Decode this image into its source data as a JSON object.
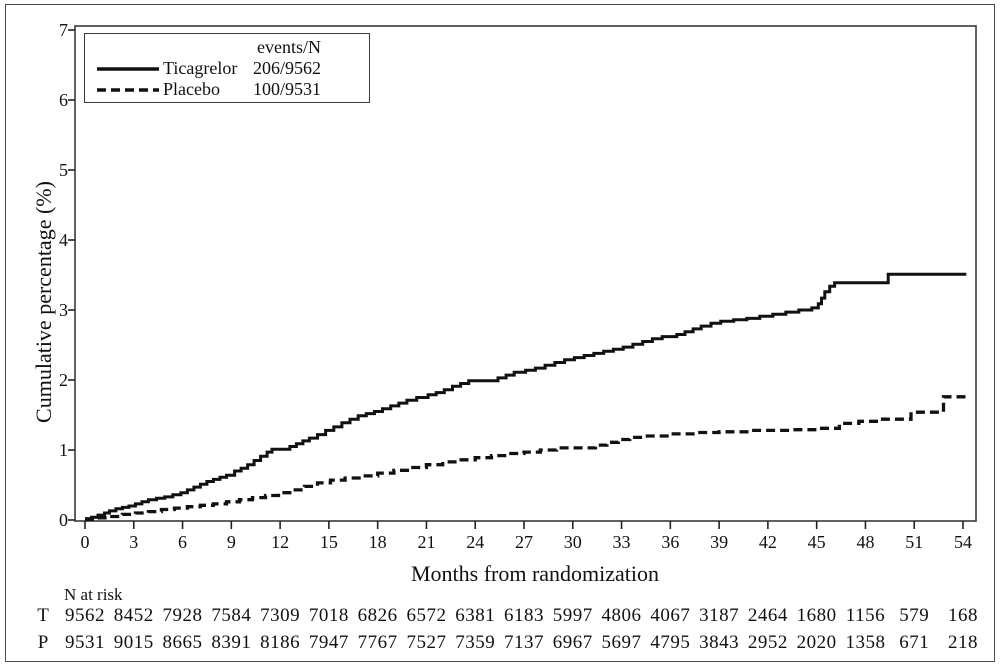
{
  "figure": {
    "background": "#ffffff",
    "line_color": "#111111",
    "frame_color": "#3a3a3a",
    "outer_border_color": "#4a4a4a"
  },
  "chart_data": {
    "type": "line",
    "subtype": "kaplan-meier-step",
    "title": "",
    "xlabel": "Months from randomization",
    "ylabel": "Cumulative percentage (%)",
    "xlim": [
      0,
      54
    ],
    "ylim": [
      0,
      7
    ],
    "x_ticks": [
      0,
      3,
      6,
      9,
      12,
      15,
      18,
      21,
      24,
      27,
      30,
      33,
      36,
      39,
      42,
      45,
      48,
      51,
      54
    ],
    "y_ticks": [
      0,
      1,
      2,
      3,
      4,
      5,
      6,
      7
    ],
    "grid": false,
    "legend": {
      "position": "top-left",
      "header": "events/N",
      "entries": [
        {
          "label": "Ticagrelor",
          "events_n": "206/9562",
          "style": "solid"
        },
        {
          "label": "Placebo",
          "events_n": "100/9531",
          "style": "dashed"
        }
      ]
    },
    "series": [
      {
        "name": "Ticagrelor",
        "style": "solid",
        "points": [
          [
            0,
            0.02
          ],
          [
            0.4,
            0.04
          ],
          [
            0.8,
            0.07
          ],
          [
            1.2,
            0.1
          ],
          [
            1.5,
            0.13
          ],
          [
            1.9,
            0.16
          ],
          [
            2.3,
            0.18
          ],
          [
            2.7,
            0.2
          ],
          [
            3.1,
            0.23
          ],
          [
            3.5,
            0.26
          ],
          [
            3.9,
            0.29
          ],
          [
            4.4,
            0.31
          ],
          [
            4.9,
            0.33
          ],
          [
            5.4,
            0.36
          ],
          [
            5.9,
            0.39
          ],
          [
            6.3,
            0.43
          ],
          [
            6.7,
            0.47
          ],
          [
            7.1,
            0.51
          ],
          [
            7.5,
            0.55
          ],
          [
            7.9,
            0.58
          ],
          [
            8.3,
            0.61
          ],
          [
            8.7,
            0.64
          ],
          [
            9.2,
            0.7
          ],
          [
            9.6,
            0.74
          ],
          [
            10.0,
            0.79
          ],
          [
            10.4,
            0.85
          ],
          [
            10.8,
            0.91
          ],
          [
            11.2,
            0.97
          ],
          [
            11.5,
            1.01
          ],
          [
            12.6,
            1.05
          ],
          [
            13.0,
            1.09
          ],
          [
            13.4,
            1.13
          ],
          [
            13.8,
            1.17
          ],
          [
            14.3,
            1.22
          ],
          [
            14.8,
            1.28
          ],
          [
            15.3,
            1.33
          ],
          [
            15.8,
            1.39
          ],
          [
            16.3,
            1.44
          ],
          [
            16.8,
            1.49
          ],
          [
            17.3,
            1.52
          ],
          [
            17.8,
            1.55
          ],
          [
            18.3,
            1.59
          ],
          [
            18.8,
            1.63
          ],
          [
            19.3,
            1.67
          ],
          [
            19.8,
            1.71
          ],
          [
            20.4,
            1.75
          ],
          [
            21.1,
            1.79
          ],
          [
            21.6,
            1.82
          ],
          [
            22.1,
            1.86
          ],
          [
            22.6,
            1.91
          ],
          [
            23.1,
            1.95
          ],
          [
            23.6,
            1.99
          ],
          [
            25.4,
            2.03
          ],
          [
            25.9,
            2.07
          ],
          [
            26.4,
            2.11
          ],
          [
            27.1,
            2.14
          ],
          [
            27.7,
            2.17
          ],
          [
            28.3,
            2.21
          ],
          [
            28.9,
            2.25
          ],
          [
            29.5,
            2.29
          ],
          [
            30.1,
            2.32
          ],
          [
            30.7,
            2.35
          ],
          [
            31.3,
            2.38
          ],
          [
            31.9,
            2.41
          ],
          [
            32.5,
            2.44
          ],
          [
            33.1,
            2.47
          ],
          [
            33.7,
            2.51
          ],
          [
            34.3,
            2.55
          ],
          [
            34.9,
            2.59
          ],
          [
            35.5,
            2.62
          ],
          [
            36.4,
            2.65
          ],
          [
            36.9,
            2.69
          ],
          [
            37.4,
            2.73
          ],
          [
            37.9,
            2.77
          ],
          [
            38.5,
            2.81
          ],
          [
            39.1,
            2.84
          ],
          [
            39.9,
            2.86
          ],
          [
            40.7,
            2.88
          ],
          [
            41.5,
            2.91
          ],
          [
            42.3,
            2.94
          ],
          [
            43.1,
            2.97
          ],
          [
            43.9,
            3.0
          ],
          [
            44.7,
            3.03
          ],
          [
            45.1,
            3.09
          ],
          [
            45.3,
            3.17
          ],
          [
            45.5,
            3.26
          ],
          [
            45.8,
            3.34
          ],
          [
            46.1,
            3.39
          ],
          [
            49.4,
            3.51
          ],
          [
            54.2,
            3.51
          ]
        ]
      },
      {
        "name": "Placebo",
        "style": "dashed",
        "points": [
          [
            0,
            0.01
          ],
          [
            0.7,
            0.03
          ],
          [
            1.5,
            0.05
          ],
          [
            2.3,
            0.08
          ],
          [
            3.1,
            0.1
          ],
          [
            3.9,
            0.12
          ],
          [
            4.7,
            0.15
          ],
          [
            5.5,
            0.17
          ],
          [
            6.3,
            0.19
          ],
          [
            7.1,
            0.21
          ],
          [
            7.9,
            0.23
          ],
          [
            8.7,
            0.26
          ],
          [
            9.5,
            0.29
          ],
          [
            10.3,
            0.32
          ],
          [
            11.1,
            0.35
          ],
          [
            11.9,
            0.39
          ],
          [
            12.7,
            0.43
          ],
          [
            13.5,
            0.48
          ],
          [
            14.3,
            0.53
          ],
          [
            15.1,
            0.57
          ],
          [
            16.0,
            0.6
          ],
          [
            17.0,
            0.63
          ],
          [
            18.0,
            0.67
          ],
          [
            19.0,
            0.71
          ],
          [
            20.0,
            0.75
          ],
          [
            21.0,
            0.79
          ],
          [
            22.0,
            0.83
          ],
          [
            23.0,
            0.86
          ],
          [
            24.0,
            0.89
          ],
          [
            25.0,
            0.92
          ],
          [
            26.0,
            0.95
          ],
          [
            27.0,
            0.97
          ],
          [
            28.0,
            1.0
          ],
          [
            29.0,
            1.03
          ],
          [
            31.4,
            1.07
          ],
          [
            32.1,
            1.11
          ],
          [
            32.8,
            1.15
          ],
          [
            33.5,
            1.18
          ],
          [
            34.4,
            1.2
          ],
          [
            36.0,
            1.23
          ],
          [
            37.5,
            1.25
          ],
          [
            39.0,
            1.26
          ],
          [
            41.0,
            1.28
          ],
          [
            43.5,
            1.29
          ],
          [
            45.0,
            1.31
          ],
          [
            46.4,
            1.38
          ],
          [
            47.6,
            1.41
          ],
          [
            48.8,
            1.44
          ],
          [
            50.8,
            1.54
          ],
          [
            52.8,
            1.76
          ],
          [
            54.2,
            1.76
          ]
        ]
      }
    ]
  },
  "risk_table": {
    "title": "N at risk",
    "months": [
      0,
      3,
      6,
      9,
      12,
      15,
      18,
      21,
      24,
      27,
      30,
      33,
      36,
      39,
      42,
      45,
      48,
      51,
      54
    ],
    "rows": [
      {
        "label": "T",
        "values": [
          9562,
          8452,
          7928,
          7584,
          7309,
          7018,
          6826,
          6572,
          6381,
          6183,
          5997,
          4806,
          4067,
          3187,
          2464,
          1680,
          1156,
          579,
          168
        ]
      },
      {
        "label": "P",
        "values": [
          9531,
          9015,
          8665,
          8391,
          8186,
          7947,
          7767,
          7527,
          7359,
          7137,
          6967,
          5697,
          4795,
          3843,
          2952,
          2020,
          1358,
          671,
          218
        ]
      }
    ]
  }
}
